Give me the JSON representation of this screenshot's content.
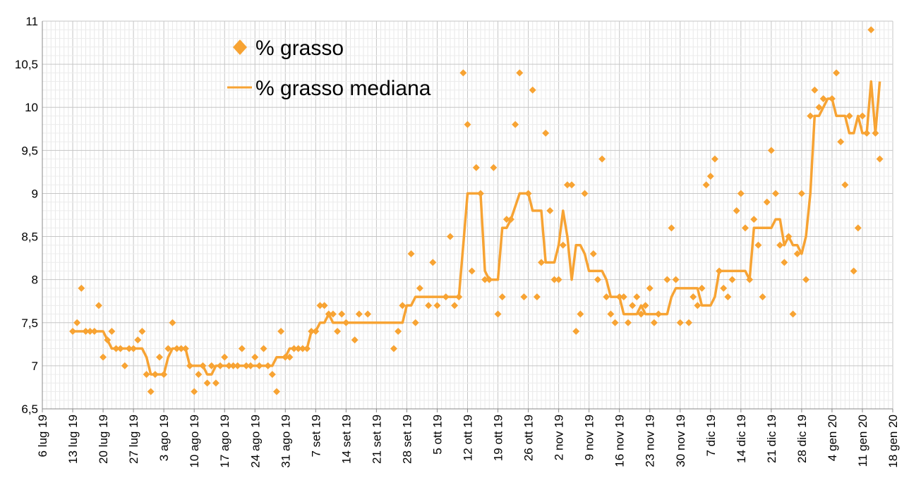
{
  "chart_data": {
    "type": "line",
    "title": "",
    "xlabel": "",
    "ylabel": "",
    "ylim": [
      6.5,
      11
    ],
    "y_ticks": [
      "6,5",
      "7",
      "7,5",
      "8",
      "8,5",
      "9",
      "9,5",
      "10",
      "10,5",
      "11"
    ],
    "x_ticks": [
      "6 lug 19",
      "13 lug 19",
      "20 lug 19",
      "27 lug 19",
      "3 ago 19",
      "10 ago 19",
      "17 ago 19",
      "24 ago 19",
      "31 ago 19",
      "7 set 19",
      "14 set 19",
      "21 set 19",
      "28 set 19",
      "5 ott 19",
      "12 ott 19",
      "19 ott 19",
      "26 ott 19",
      "2 nov 19",
      "9 nov 19",
      "16 nov 19",
      "23 nov 19",
      "30 nov 19",
      "7 dic 19",
      "14 dic 19",
      "21 dic 19",
      "28 dic 19",
      "4 gen 20",
      "11 gen 20",
      "18 gen 20"
    ],
    "grid": true,
    "legend_position": "top-left",
    "colors": {
      "series": "#f7a333",
      "grid": "#cccccc",
      "axis": "#888888"
    },
    "series": [
      {
        "name": "% grasso",
        "kind": "scatter",
        "marker": "diamond",
        "points": [
          [
            "2019-07-13",
            7.4
          ],
          [
            "2019-07-14",
            7.5
          ],
          [
            "2019-07-15",
            7.9
          ],
          [
            "2019-07-16",
            7.4
          ],
          [
            "2019-07-17",
            7.4
          ],
          [
            "2019-07-18",
            7.4
          ],
          [
            "2019-07-19",
            7.7
          ],
          [
            "2019-07-20",
            7.1
          ],
          [
            "2019-07-21",
            7.3
          ],
          [
            "2019-07-22",
            7.4
          ],
          [
            "2019-07-23",
            7.2
          ],
          [
            "2019-07-24",
            7.2
          ],
          [
            "2019-07-25",
            7.0
          ],
          [
            "2019-07-26",
            7.2
          ],
          [
            "2019-07-27",
            7.2
          ],
          [
            "2019-07-28",
            7.3
          ],
          [
            "2019-07-29",
            7.4
          ],
          [
            "2019-07-30",
            6.9
          ],
          [
            "2019-07-31",
            6.7
          ],
          [
            "2019-08-01",
            6.9
          ],
          [
            "2019-08-02",
            7.1
          ],
          [
            "2019-08-03",
            6.9
          ],
          [
            "2019-08-04",
            7.2
          ],
          [
            "2019-08-05",
            7.5
          ],
          [
            "2019-08-06",
            7.2
          ],
          [
            "2019-08-07",
            7.2
          ],
          [
            "2019-08-08",
            7.2
          ],
          [
            "2019-08-09",
            7.0
          ],
          [
            "2019-08-10",
            6.7
          ],
          [
            "2019-08-11",
            6.9
          ],
          [
            "2019-08-12",
            7.0
          ],
          [
            "2019-08-13",
            6.8
          ],
          [
            "2019-08-14",
            7.0
          ],
          [
            "2019-08-15",
            6.8
          ],
          [
            "2019-08-16",
            7.0
          ],
          [
            "2019-08-17",
            7.1
          ],
          [
            "2019-08-18",
            7.0
          ],
          [
            "2019-08-19",
            7.0
          ],
          [
            "2019-08-20",
            7.0
          ],
          [
            "2019-08-21",
            7.2
          ],
          [
            "2019-08-22",
            7.0
          ],
          [
            "2019-08-23",
            7.0
          ],
          [
            "2019-08-24",
            7.1
          ],
          [
            "2019-08-25",
            7.0
          ],
          [
            "2019-08-26",
            7.2
          ],
          [
            "2019-08-27",
            7.0
          ],
          [
            "2019-08-28",
            6.9
          ],
          [
            "2019-08-29",
            6.7
          ],
          [
            "2019-08-30",
            7.4
          ],
          [
            "2019-08-31",
            7.1
          ],
          [
            "2019-09-01",
            7.1
          ],
          [
            "2019-09-02",
            7.2
          ],
          [
            "2019-09-03",
            7.2
          ],
          [
            "2019-09-04",
            7.2
          ],
          [
            "2019-09-05",
            7.2
          ],
          [
            "2019-09-06",
            7.4
          ],
          [
            "2019-09-07",
            7.4
          ],
          [
            "2019-09-08",
            7.7
          ],
          [
            "2019-09-09",
            7.7
          ],
          [
            "2019-09-10",
            7.6
          ],
          [
            "2019-09-11",
            7.6
          ],
          [
            "2019-09-12",
            7.4
          ],
          [
            "2019-09-13",
            7.6
          ],
          [
            "2019-09-14",
            7.5
          ],
          [
            "2019-09-16",
            7.3
          ],
          [
            "2019-09-17",
            7.6
          ],
          [
            "2019-09-19",
            7.6
          ],
          [
            "2019-09-25",
            7.2
          ],
          [
            "2019-09-26",
            7.4
          ],
          [
            "2019-09-27",
            7.7
          ],
          [
            "2019-09-29",
            8.3
          ],
          [
            "2019-09-30",
            7.5
          ],
          [
            "2019-10-01",
            7.9
          ],
          [
            "2019-10-03",
            7.7
          ],
          [
            "2019-10-04",
            8.2
          ],
          [
            "2019-10-05",
            7.7
          ],
          [
            "2019-10-07",
            7.8
          ],
          [
            "2019-10-08",
            8.5
          ],
          [
            "2019-10-09",
            7.7
          ],
          [
            "2019-10-10",
            7.8
          ],
          [
            "2019-10-11",
            10.4
          ],
          [
            "2019-10-12",
            9.8
          ],
          [
            "2019-10-13",
            8.1
          ],
          [
            "2019-10-14",
            9.3
          ],
          [
            "2019-10-15",
            9.0
          ],
          [
            "2019-10-16",
            8.0
          ],
          [
            "2019-10-17",
            8.0
          ],
          [
            "2019-10-18",
            9.3
          ],
          [
            "2019-10-19",
            7.6
          ],
          [
            "2019-10-20",
            7.8
          ],
          [
            "2019-10-21",
            8.7
          ],
          [
            "2019-10-22",
            8.7
          ],
          [
            "2019-10-23",
            9.8
          ],
          [
            "2019-10-24",
            10.4
          ],
          [
            "2019-10-25",
            7.8
          ],
          [
            "2019-10-26",
            9.0
          ],
          [
            "2019-10-27",
            10.2
          ],
          [
            "2019-10-28",
            7.8
          ],
          [
            "2019-10-29",
            8.2
          ],
          [
            "2019-10-30",
            9.7
          ],
          [
            "2019-10-31",
            8.8
          ],
          [
            "2019-11-01",
            8.0
          ],
          [
            "2019-11-02",
            8.0
          ],
          [
            "2019-11-03",
            8.4
          ],
          [
            "2019-11-04",
            9.1
          ],
          [
            "2019-11-05",
            9.1
          ],
          [
            "2019-11-06",
            7.4
          ],
          [
            "2019-11-07",
            7.6
          ],
          [
            "2019-11-08",
            9.0
          ],
          [
            "2019-11-10",
            8.3
          ],
          [
            "2019-11-11",
            8.0
          ],
          [
            "2019-11-12",
            9.4
          ],
          [
            "2019-11-13",
            7.8
          ],
          [
            "2019-11-14",
            7.6
          ],
          [
            "2019-11-15",
            7.5
          ],
          [
            "2019-11-16",
            7.8
          ],
          [
            "2019-11-17",
            7.8
          ],
          [
            "2019-11-18",
            7.5
          ],
          [
            "2019-11-19",
            7.7
          ],
          [
            "2019-11-20",
            7.8
          ],
          [
            "2019-11-21",
            7.6
          ],
          [
            "2019-11-22",
            7.7
          ],
          [
            "2019-11-23",
            7.9
          ],
          [
            "2019-11-24",
            7.5
          ],
          [
            "2019-11-25",
            7.6
          ],
          [
            "2019-11-27",
            8.0
          ],
          [
            "2019-11-28",
            8.6
          ],
          [
            "2019-11-29",
            8.0
          ],
          [
            "2019-11-30",
            7.5
          ],
          [
            "2019-12-02",
            7.5
          ],
          [
            "2019-12-03",
            7.8
          ],
          [
            "2019-12-04",
            7.7
          ],
          [
            "2019-12-05",
            7.9
          ],
          [
            "2019-12-06",
            9.1
          ],
          [
            "2019-12-07",
            9.2
          ],
          [
            "2019-12-08",
            9.4
          ],
          [
            "2019-12-09",
            8.1
          ],
          [
            "2019-12-10",
            7.9
          ],
          [
            "2019-12-11",
            7.8
          ],
          [
            "2019-12-12",
            8.0
          ],
          [
            "2019-12-13",
            8.8
          ],
          [
            "2019-12-14",
            9.0
          ],
          [
            "2019-12-15",
            8.6
          ],
          [
            "2019-12-16",
            8.0
          ],
          [
            "2019-12-17",
            8.7
          ],
          [
            "2019-12-18",
            8.4
          ],
          [
            "2019-12-19",
            7.8
          ],
          [
            "2019-12-20",
            8.9
          ],
          [
            "2019-12-21",
            9.5
          ],
          [
            "2019-12-22",
            9.0
          ],
          [
            "2019-12-23",
            8.4
          ],
          [
            "2019-12-24",
            8.2
          ],
          [
            "2019-12-25",
            8.5
          ],
          [
            "2019-12-26",
            7.6
          ],
          [
            "2019-12-27",
            8.3
          ],
          [
            "2019-12-28",
            9.0
          ],
          [
            "2019-12-29",
            8.0
          ],
          [
            "2019-12-30",
            9.9
          ],
          [
            "2019-12-31",
            10.2
          ],
          [
            "2020-01-01",
            10.0
          ],
          [
            "2020-01-02",
            10.1
          ],
          [
            "2020-01-04",
            10.1
          ],
          [
            "2020-01-05",
            10.4
          ],
          [
            "2020-01-06",
            9.6
          ],
          [
            "2020-01-07",
            9.1
          ],
          [
            "2020-01-08",
            9.9
          ],
          [
            "2020-01-09",
            8.1
          ],
          [
            "2020-01-10",
            8.6
          ],
          [
            "2020-01-11",
            9.9
          ],
          [
            "2020-01-12",
            9.7
          ],
          [
            "2020-01-13",
            10.9
          ],
          [
            "2020-01-14",
            9.7
          ],
          [
            "2020-01-15",
            9.4
          ]
        ]
      },
      {
        "name": "% grasso mediana",
        "kind": "line",
        "points": [
          [
            "2019-07-13",
            7.4
          ],
          [
            "2019-07-20",
            7.4
          ],
          [
            "2019-07-21",
            7.3
          ],
          [
            "2019-07-22",
            7.2
          ],
          [
            "2019-07-29",
            7.2
          ],
          [
            "2019-07-30",
            7.1
          ],
          [
            "2019-07-31",
            6.9
          ],
          [
            "2019-08-03",
            6.9
          ],
          [
            "2019-08-04",
            7.1
          ],
          [
            "2019-08-05",
            7.2
          ],
          [
            "2019-08-08",
            7.2
          ],
          [
            "2019-08-09",
            7.0
          ],
          [
            "2019-08-12",
            7.0
          ],
          [
            "2019-08-13",
            6.9
          ],
          [
            "2019-08-14",
            6.9
          ],
          [
            "2019-08-15",
            7.0
          ],
          [
            "2019-08-28",
            7.0
          ],
          [
            "2019-08-29",
            7.1
          ],
          [
            "2019-08-31",
            7.1
          ],
          [
            "2019-09-01",
            7.2
          ],
          [
            "2019-09-05",
            7.2
          ],
          [
            "2019-09-06",
            7.4
          ],
          [
            "2019-09-07",
            7.4
          ],
          [
            "2019-09-08",
            7.5
          ],
          [
            "2019-09-09",
            7.5
          ],
          [
            "2019-09-10",
            7.6
          ],
          [
            "2019-09-11",
            7.5
          ],
          [
            "2019-09-27",
            7.5
          ],
          [
            "2019-09-28",
            7.7
          ],
          [
            "2019-09-29",
            7.7
          ],
          [
            "2019-09-30",
            7.8
          ],
          [
            "2019-10-10",
            7.8
          ],
          [
            "2019-10-11",
            8.4
          ],
          [
            "2019-10-12",
            9.0
          ],
          [
            "2019-10-15",
            9.0
          ],
          [
            "2019-10-16",
            8.1
          ],
          [
            "2019-10-17",
            8.0
          ],
          [
            "2019-10-19",
            8.0
          ],
          [
            "2019-10-20",
            8.6
          ],
          [
            "2019-10-21",
            8.6
          ],
          [
            "2019-10-22",
            8.7
          ],
          [
            "2019-10-24",
            9.0
          ],
          [
            "2019-10-26",
            9.0
          ],
          [
            "2019-10-27",
            8.8
          ],
          [
            "2019-10-29",
            8.8
          ],
          [
            "2019-10-30",
            8.2
          ],
          [
            "2019-11-01",
            8.2
          ],
          [
            "2019-11-02",
            8.4
          ],
          [
            "2019-11-03",
            8.8
          ],
          [
            "2019-11-04",
            8.5
          ],
          [
            "2019-11-05",
            8.0
          ],
          [
            "2019-11-06",
            8.4
          ],
          [
            "2019-11-07",
            8.4
          ],
          [
            "2019-11-08",
            8.3
          ],
          [
            "2019-11-09",
            8.1
          ],
          [
            "2019-11-12",
            8.1
          ],
          [
            "2019-11-13",
            8.0
          ],
          [
            "2019-11-14",
            7.8
          ],
          [
            "2019-11-16",
            7.8
          ],
          [
            "2019-11-17",
            7.6
          ],
          [
            "2019-11-20",
            7.6
          ],
          [
            "2019-11-21",
            7.7
          ],
          [
            "2019-11-22",
            7.6
          ],
          [
            "2019-11-27",
            7.6
          ],
          [
            "2019-11-28",
            7.8
          ],
          [
            "2019-11-29",
            7.9
          ],
          [
            "2019-12-04",
            7.9
          ],
          [
            "2019-12-05",
            7.7
          ],
          [
            "2019-12-07",
            7.7
          ],
          [
            "2019-12-08",
            7.8
          ],
          [
            "2019-12-09",
            8.1
          ],
          [
            "2019-12-15",
            8.1
          ],
          [
            "2019-12-16",
            8.0
          ],
          [
            "2019-12-17",
            8.6
          ],
          [
            "2019-12-18",
            8.6
          ],
          [
            "2019-12-19",
            8.6
          ],
          [
            "2019-12-21",
            8.6
          ],
          [
            "2019-12-22",
            8.7
          ],
          [
            "2019-12-23",
            8.7
          ],
          [
            "2019-12-24",
            8.4
          ],
          [
            "2019-12-25",
            8.5
          ],
          [
            "2019-12-26",
            8.4
          ],
          [
            "2019-12-27",
            8.4
          ],
          [
            "2019-12-28",
            8.3
          ],
          [
            "2019-12-29",
            8.5
          ],
          [
            "2019-12-30",
            9.0
          ],
          [
            "2019-12-31",
            9.9
          ],
          [
            "2020-01-01",
            9.9
          ],
          [
            "2020-01-02",
            10.0
          ],
          [
            "2020-01-03",
            10.1
          ],
          [
            "2020-01-04",
            10.1
          ],
          [
            "2020-01-05",
            9.9
          ],
          [
            "2020-01-07",
            9.9
          ],
          [
            "2020-01-08",
            9.7
          ],
          [
            "2020-01-09",
            9.7
          ],
          [
            "2020-01-10",
            9.9
          ],
          [
            "2020-01-11",
            9.7
          ],
          [
            "2020-01-12",
            9.7
          ],
          [
            "2020-01-13",
            10.3
          ],
          [
            "2020-01-14",
            9.7
          ],
          [
            "2020-01-15",
            10.3
          ]
        ]
      }
    ]
  }
}
